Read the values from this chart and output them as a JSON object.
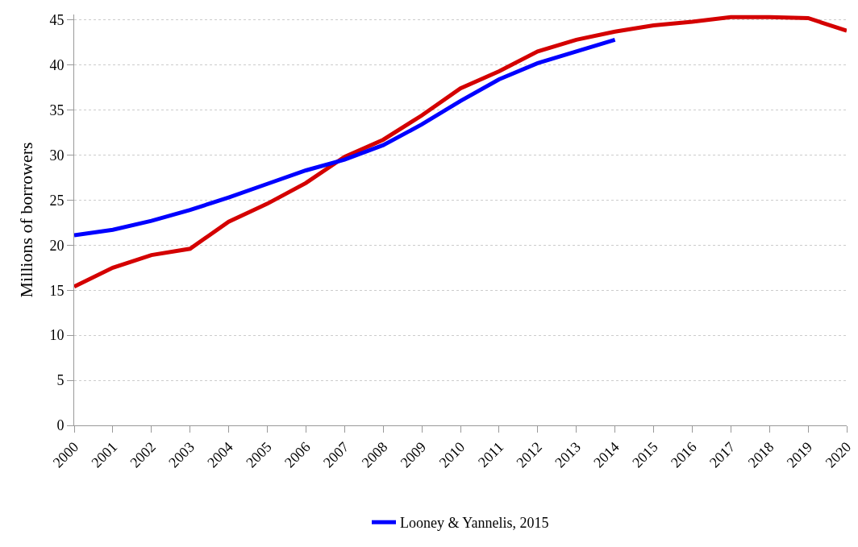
{
  "chart_data": {
    "type": "line",
    "ylabel": "Millions of borrowers",
    "x": [
      2000,
      2001,
      2002,
      2003,
      2004,
      2005,
      2006,
      2007,
      2008,
      2009,
      2010,
      2011,
      2012,
      2013,
      2014,
      2015,
      2016,
      2017,
      2018,
      2019,
      2020
    ],
    "series": [
      {
        "color": "#d40000",
        "values": [
          15.4,
          17.5,
          18.9,
          19.6,
          22.6,
          24.6,
          26.9,
          29.8,
          31.7,
          34.4,
          37.4,
          39.3,
          41.5,
          42.8,
          43.7,
          44.4,
          44.8,
          45.3,
          45.3,
          45.2,
          43.8
        ]
      },
      {
        "name": "Looney & Yannelis, 2015",
        "color": "#0000ff",
        "values": [
          21.1,
          21.7,
          22.7,
          23.9,
          25.3,
          26.8,
          28.3,
          29.5,
          31.1,
          33.4,
          36.0,
          38.4,
          40.2,
          41.5,
          42.8,
          null,
          null,
          null,
          null,
          null,
          null
        ]
      }
    ],
    "xlim": [
      2000,
      2020
    ],
    "xticks": [
      2000,
      2001,
      2002,
      2003,
      2004,
      2005,
      2006,
      2007,
      2008,
      2009,
      2010,
      2011,
      2012,
      2013,
      2014,
      2015,
      2016,
      2017,
      2018,
      2019,
      2020
    ],
    "ylim": [
      0,
      45.6
    ],
    "yticks": [
      0,
      5,
      10,
      15,
      20,
      25,
      30,
      35,
      40,
      45
    ],
    "grid": "y",
    "legend": "bottom",
    "marker": "none",
    "line_style": "solid"
  }
}
